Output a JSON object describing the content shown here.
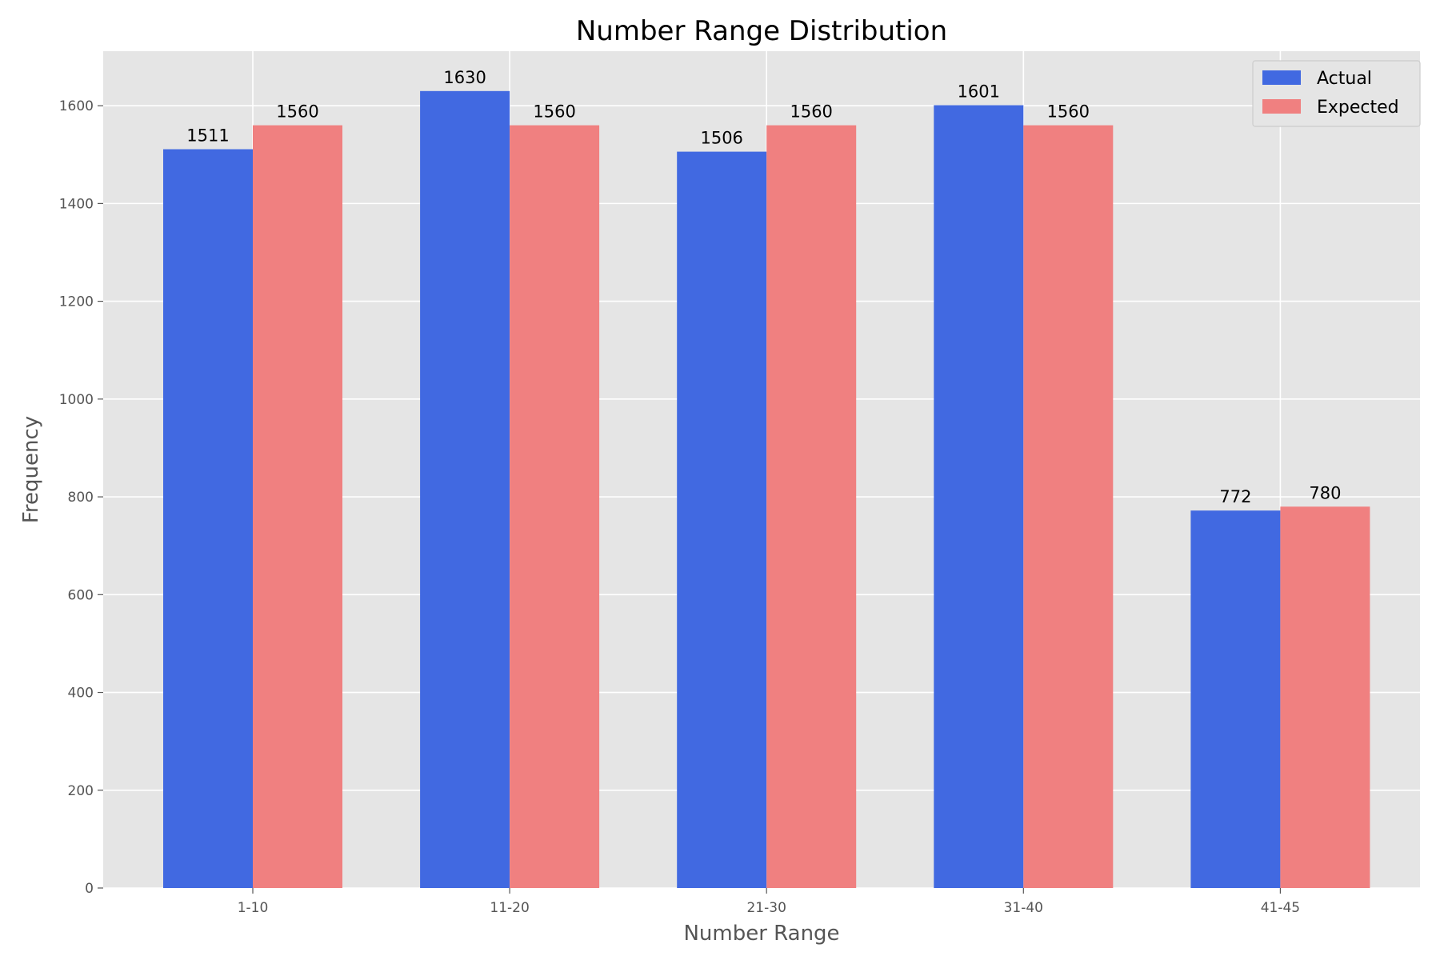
{
  "chart_data": {
    "type": "bar",
    "title": "Number Range Distribution",
    "xlabel": "Number Range",
    "ylabel": "Frequency",
    "categories": [
      "1-10",
      "11-20",
      "21-30",
      "31-40",
      "41-45"
    ],
    "series": [
      {
        "name": "Actual",
        "values": [
          1511,
          1630,
          1506,
          1601,
          772
        ],
        "color": "#4169E1"
      },
      {
        "name": "Expected",
        "values": [
          1560,
          1560,
          1560,
          1560,
          780
        ],
        "color": "#F08080"
      }
    ],
    "ylim": [
      0,
      1711.5
    ],
    "yticks": [
      0,
      200,
      400,
      600,
      800,
      1000,
      1200,
      1400,
      1600
    ],
    "grid": true,
    "legend": "top-right",
    "colors": {
      "background": "#E5E5E5",
      "grid": "#FFFFFF"
    }
  }
}
